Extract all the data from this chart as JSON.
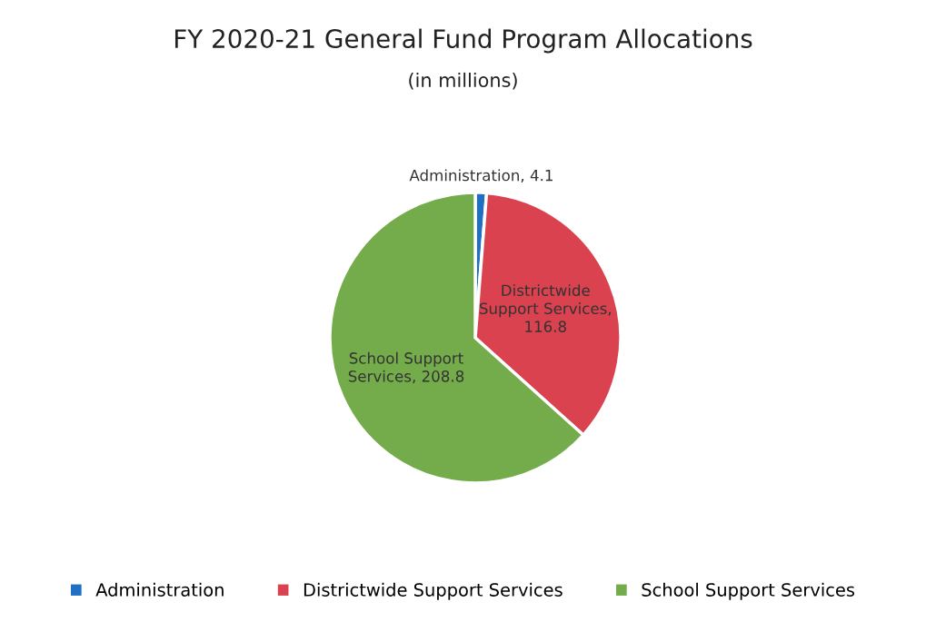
{
  "chart_data": {
    "type": "pie",
    "title": "FY 2020-21 General Fund Program Allocations",
    "subtitle": "(in millions)",
    "categories": [
      "Administration",
      "Districtwide Support Services",
      "School Support Services"
    ],
    "values": [
      4.1,
      116.8,
      208.8
    ],
    "colors": [
      "#1f6fc5",
      "#d9424e",
      "#74ac4c"
    ],
    "value_labels": [
      "Administration, 4.1",
      "Districtwide\nSupport Services,\n116.8",
      "School Support\nServices, 208.8"
    ],
    "legend": "bottom"
  }
}
